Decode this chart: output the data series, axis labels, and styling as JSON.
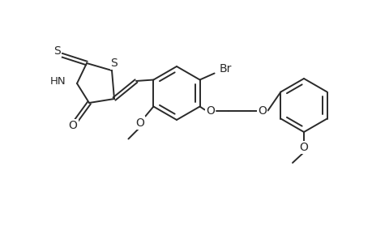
{
  "background_color": "#ffffff",
  "line_color": "#2a2a2a",
  "line_width": 1.4,
  "figsize": [
    4.6,
    3.0
  ],
  "dpi": 100,
  "labels": {
    "S_thioxo": "S",
    "S_ring": "S",
    "HN": "HN",
    "O_carbonyl": "O",
    "Br": "Br",
    "O_ether1": "O",
    "O_ether2": "O",
    "O_methoxy1": "O",
    "O_methoxy2": "O"
  }
}
